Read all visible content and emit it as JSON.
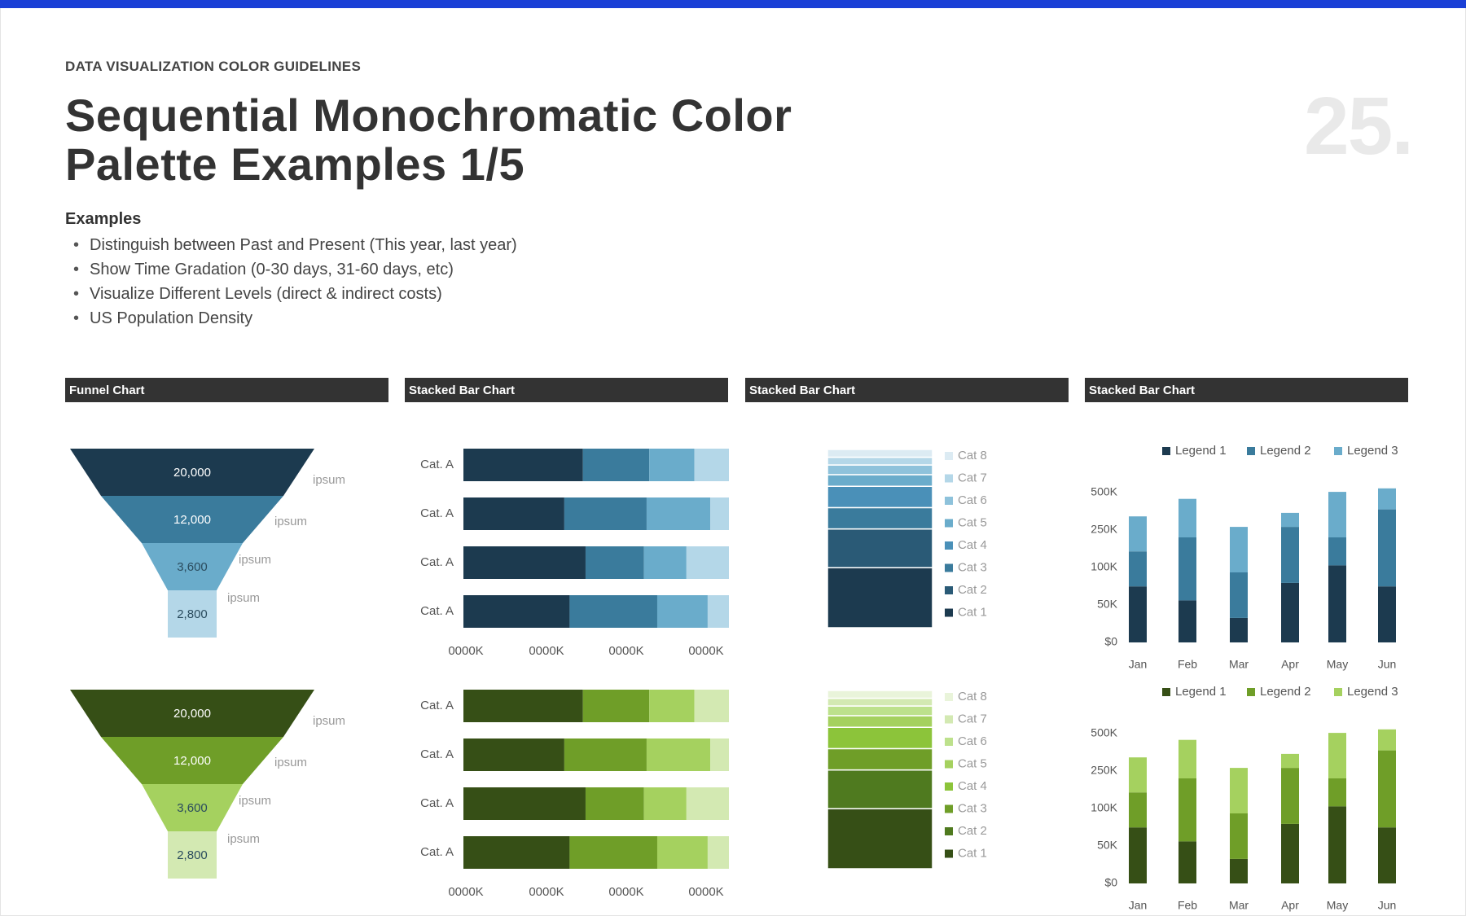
{
  "header": {
    "eyebrow": "DATA VISUALIZATION COLOR GUIDELINES",
    "title_line1": "Sequential Monochromatic Color",
    "title_line2": "Palette Examples 1/5",
    "page_number": "25."
  },
  "examples": {
    "heading": "Examples",
    "bullet": "•",
    "items": [
      "Distinguish between Past and Present (This year, last year)",
      "Show Time Gradation (0-30 days, 31-60 days, etc)",
      "Visualize Different Levels (direct & indirect costs)",
      "US Population Density"
    ]
  },
  "panels": [
    "Funnel Chart",
    "Stacked Bar Chart",
    "Stacked Bar Chart",
    "Stacked Bar Chart"
  ],
  "palettes": {
    "blue": [
      "#1c3a4f",
      "#3a7b9c",
      "#6aaccb",
      "#b4d7e8"
    ],
    "blue8": [
      "#1c3a4f",
      "#2a5a76",
      "#3a7b9c",
      "#4a90b8",
      "#6aaccb",
      "#8ec2db",
      "#b4d7e8",
      "#dcebf3"
    ],
    "green": [
      "#364f16",
      "#6f9e28",
      "#a5d15f",
      "#d3e9b2"
    ],
    "green8": [
      "#364f16",
      "#4f7a1f",
      "#6f9e28",
      "#8cc43a",
      "#a5d15f",
      "#bde18c",
      "#d3e9b2",
      "#e9f4da"
    ]
  },
  "chart_data": [
    {
      "type": "funnel",
      "palette": "blue",
      "stages": [
        {
          "value": 20000,
          "value_label": "20,000",
          "label": "ipsum"
        },
        {
          "value": 12000,
          "value_label": "12,000",
          "label": "ipsum"
        },
        {
          "value": 3600,
          "value_label": "3,600",
          "label": "ipsum"
        },
        {
          "value": 2800,
          "value_label": "2,800",
          "label": "ipsum"
        }
      ]
    },
    {
      "type": "funnel",
      "palette": "green",
      "stages": [
        {
          "value": 20000,
          "value_label": "20,000",
          "label": "ipsum"
        },
        {
          "value": 12000,
          "value_label": "12,000",
          "label": "ipsum"
        },
        {
          "value": 3600,
          "value_label": "3,600",
          "label": "ipsum"
        },
        {
          "value": 2800,
          "value_label": "2,800",
          "label": "ipsum"
        }
      ]
    },
    {
      "type": "bar",
      "orientation": "horizontal",
      "stacked": true,
      "palette": "blue",
      "categories": [
        "Cat. A",
        "Cat. A",
        "Cat. A",
        "Cat. A"
      ],
      "segments": [
        [
          45,
          25,
          17,
          13
        ],
        [
          38,
          31,
          24,
          7
        ],
        [
          46,
          22,
          16,
          16
        ],
        [
          40,
          33,
          19,
          8
        ]
      ],
      "x_ticks": [
        "0000K",
        "0000K",
        "0000K",
        "0000K"
      ]
    },
    {
      "type": "bar",
      "orientation": "horizontal",
      "stacked": true,
      "palette": "green",
      "categories": [
        "Cat. A",
        "Cat. A",
        "Cat. A",
        "Cat. A"
      ],
      "segments": [
        [
          45,
          25,
          17,
          13
        ],
        [
          38,
          31,
          24,
          7
        ],
        [
          46,
          22,
          16,
          16
        ],
        [
          40,
          33,
          19,
          8
        ]
      ],
      "x_ticks": [
        "0000K",
        "0000K",
        "0000K",
        "0000K"
      ]
    },
    {
      "type": "bar",
      "orientation": "vertical",
      "stacked": true,
      "palette": "blue8",
      "legend": [
        "Cat 8",
        "Cat 7",
        "Cat 6",
        "Cat 5",
        "Cat 4",
        "Cat 3",
        "Cat 2",
        "Cat 1"
      ],
      "values_bottom_to_top": [
        31,
        20,
        11,
        11,
        6,
        5,
        4,
        4
      ]
    },
    {
      "type": "bar",
      "orientation": "vertical",
      "stacked": true,
      "palette": "green8",
      "legend": [
        "Cat 8",
        "Cat 7",
        "Cat 6",
        "Cat 5",
        "Cat 4",
        "Cat 3",
        "Cat 2",
        "Cat 1"
      ],
      "values_bottom_to_top": [
        31,
        20,
        11,
        11,
        6,
        5,
        4,
        4
      ]
    },
    {
      "type": "bar",
      "stacked": true,
      "palette": "blue",
      "categories": [
        "Jan",
        "Feb",
        "Mar",
        "Apr",
        "May",
        "Jun"
      ],
      "y_ticks": [
        "$0",
        "50K",
        "100K",
        "250K",
        "500K"
      ],
      "legend_position": "top",
      "series": [
        {
          "name": "Legend 1",
          "values": [
            1.6,
            1.2,
            0.7,
            1.7,
            2.2,
            1.6
          ]
        },
        {
          "name": "Legend 2",
          "values": [
            1.0,
            1.8,
            1.3,
            1.6,
            0.8,
            2.2
          ]
        },
        {
          "name": "Legend 3",
          "values": [
            1.0,
            1.1,
            1.3,
            0.4,
            1.3,
            0.6
          ]
        }
      ]
    },
    {
      "type": "bar",
      "stacked": true,
      "palette": "green",
      "categories": [
        "Jan",
        "Feb",
        "Mar",
        "Apr",
        "May",
        "Jun"
      ],
      "y_ticks": [
        "$0",
        "50K",
        "100K",
        "250K",
        "500K"
      ],
      "legend_position": "top",
      "series": [
        {
          "name": "Legend 1",
          "values": [
            1.6,
            1.2,
            0.7,
            1.7,
            2.2,
            1.6
          ]
        },
        {
          "name": "Legend 2",
          "values": [
            1.0,
            1.8,
            1.3,
            1.6,
            0.8,
            2.2
          ]
        },
        {
          "name": "Legend 3",
          "values": [
            1.0,
            1.1,
            1.3,
            0.4,
            1.3,
            0.6
          ]
        }
      ]
    }
  ]
}
